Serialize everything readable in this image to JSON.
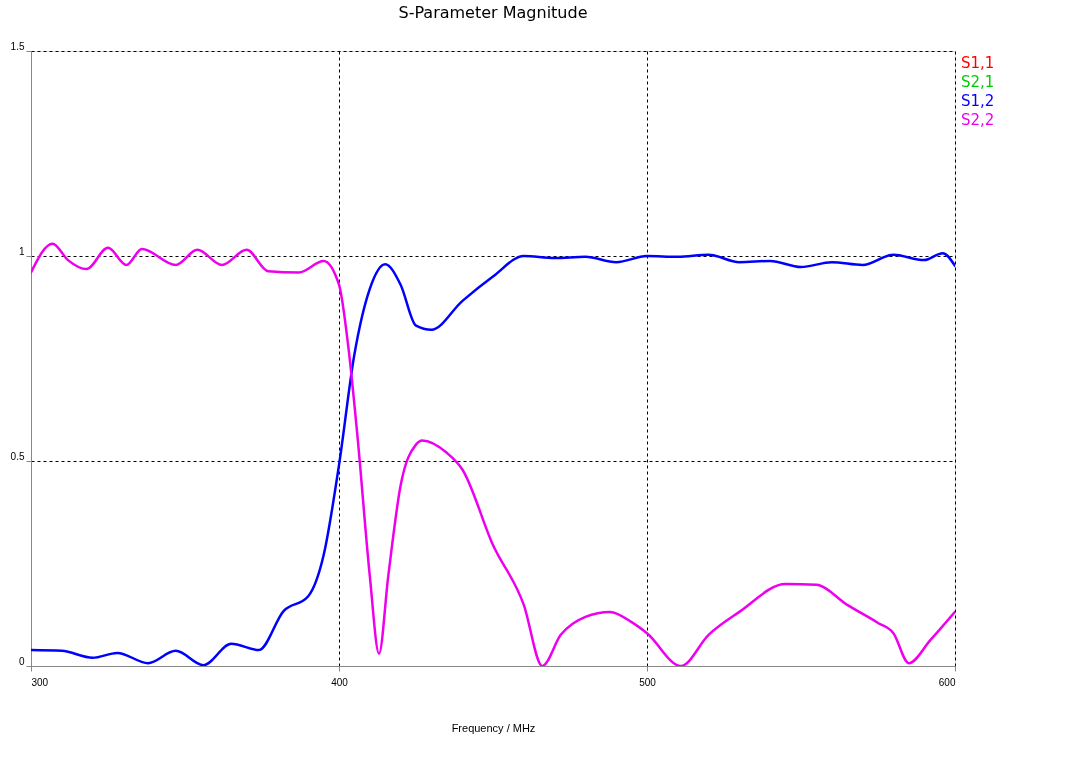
{
  "chart_data": {
    "type": "line",
    "title": "S-Parameter Magnitude",
    "xlabel": "Frequency / MHz",
    "xlim": [
      300,
      600
    ],
    "xticks": [
      300,
      400,
      500,
      600
    ],
    "ylim": [
      0,
      1.5
    ],
    "yticks": [
      0,
      0.5,
      1,
      1.5
    ],
    "grid": true,
    "legend": "top right",
    "marker": "none",
    "line_style": "solid",
    "series": [
      {
        "name": "S1,1",
        "color": "#ff0000"
      },
      {
        "name": "S2,1",
        "color": "#00cc00"
      },
      {
        "name": "S1,2",
        "color": "#0000ff",
        "x": [
          300,
          310,
          320,
          328,
          338,
          347,
          356,
          365,
          374,
          382,
          390,
          395,
          400,
          405,
          410,
          415,
          420,
          425,
          430,
          440,
          450,
          460,
          470,
          480,
          490,
          500,
          510,
          520,
          530,
          540,
          550,
          560,
          570,
          580,
          590,
          596,
          600
        ],
        "values": [
          0.039,
          0.037,
          0.02,
          0.032,
          0.007,
          0.037,
          0.002,
          0.054,
          0.039,
          0.134,
          0.17,
          0.27,
          0.49,
          0.76,
          0.92,
          0.98,
          0.93,
          0.83,
          0.82,
          0.89,
          0.95,
          1.0,
          0.995,
          0.998,
          0.985,
          1.0,
          0.998,
          1.003,
          0.985,
          0.988,
          0.973,
          0.985,
          0.978,
          1.003,
          0.99,
          1.007,
          0.976
        ]
      },
      {
        "name": "S2,2",
        "color": "#ee00ee",
        "x": [
          300,
          307,
          312,
          318,
          325,
          331,
          336,
          347,
          354,
          362,
          370,
          377,
          387,
          395,
          400,
          403,
          406,
          410,
          413,
          416,
          420,
          425,
          427,
          435,
          440,
          450,
          460,
          466,
          472,
          480,
          488,
          495,
          500,
          511,
          520,
          530,
          545,
          555,
          565,
          575,
          580,
          585,
          592,
          600
        ],
        "values": [
          0.96,
          1.03,
          0.99,
          0.968,
          1.02,
          0.978,
          1.017,
          0.978,
          1.015,
          0.978,
          1.015,
          0.963,
          0.96,
          0.988,
          0.93,
          0.78,
          0.56,
          0.22,
          0.03,
          0.22,
          0.44,
          0.54,
          0.55,
          0.52,
          0.48,
          0.295,
          0.149,
          0.0,
          0.076,
          0.12,
          0.132,
          0.107,
          0.08,
          0.0,
          0.076,
          0.132,
          0.2,
          0.198,
          0.149,
          0.105,
          0.08,
          0.007,
          0.063,
          0.132
        ]
      }
    ]
  }
}
